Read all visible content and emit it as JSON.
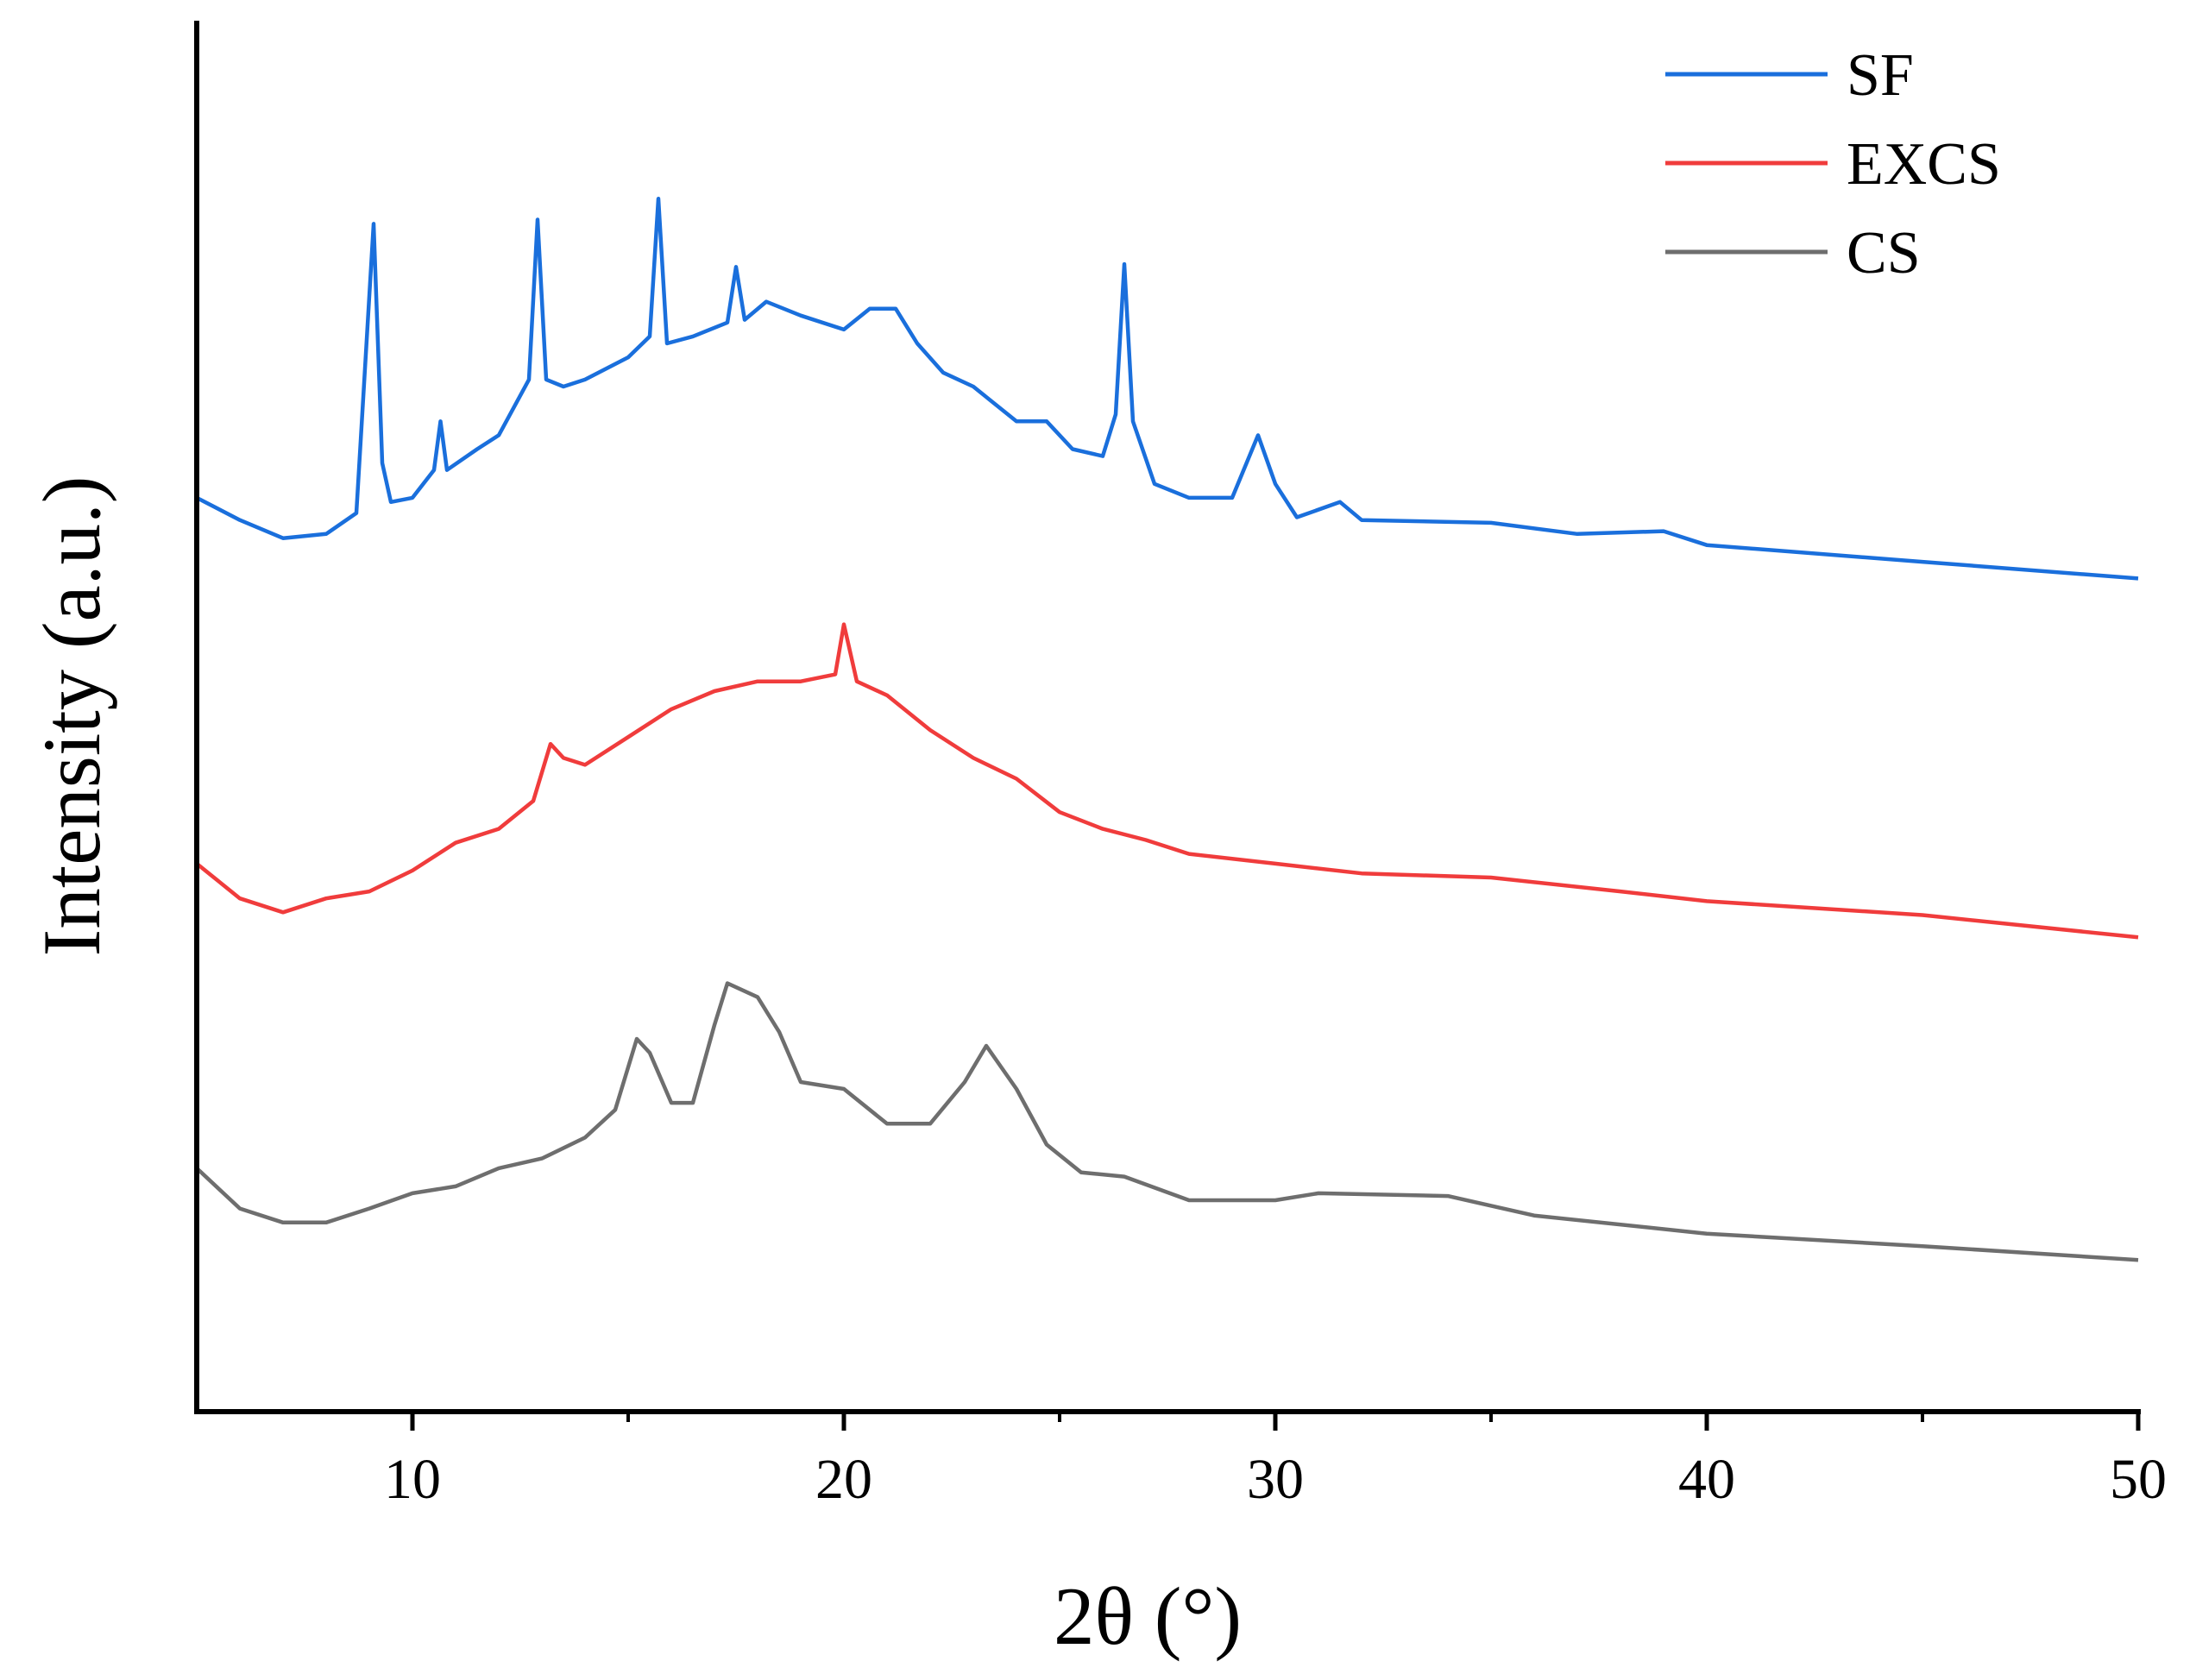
{
  "chart_data": {
    "type": "line",
    "xlabel": "2θ (°)",
    "ylabel": "Intensity (a.u.)",
    "xlim": [
      5,
      50
    ],
    "xticks": [
      10,
      20,
      30,
      40,
      50
    ],
    "xminorticks": [
      15,
      25,
      35,
      45
    ],
    "ylim": [
      0,
      100
    ],
    "legend": "upper right",
    "series": [
      {
        "name": "SF",
        "color": "#1a6fdc",
        "x": [
          5,
          6,
          7,
          8,
          8.7,
          9.1,
          9.3,
          9.5,
          10,
          10.5,
          10.65,
          10.8,
          11.5,
          12,
          12.7,
          12.9,
          13.1,
          13.5,
          14,
          15,
          15.5,
          15.7,
          15.9,
          16.5,
          17.3,
          17.5,
          17.7,
          18.2,
          19,
          20,
          20.6,
          21.2,
          21.7,
          22.3,
          23,
          24,
          24.7,
          25.3,
          26,
          26.3,
          26.5,
          26.7,
          27.2,
          28,
          29,
          29.6,
          30,
          30.5,
          31.5,
          32,
          35,
          37,
          39,
          40,
          45,
          50
        ],
        "values": [
          65.7,
          64.1,
          62.8,
          63.1,
          64.6,
          85.4,
          68.2,
          65.4,
          65.7,
          67.7,
          71.2,
          67.7,
          69.2,
          70.2,
          74.2,
          85.7,
          74.2,
          73.7,
          74.2,
          75.8,
          77.3,
          87.2,
          76.8,
          77.3,
          78.3,
          82.3,
          78.5,
          79.8,
          78.8,
          77.8,
          79.3,
          79.3,
          76.8,
          74.7,
          73.7,
          71.2,
          71.2,
          69.2,
          68.7,
          71.7,
          82.5,
          71.2,
          66.7,
          65.7,
          65.7,
          70.2,
          66.7,
          64.3,
          65.4,
          64.1,
          63.9,
          63.1,
          63.3,
          62.3,
          61.1,
          59.9
        ]
      },
      {
        "name": "EXCS",
        "color": "#f03c3c",
        "x": [
          5,
          6,
          7,
          8,
          9,
          10,
          11,
          12,
          12.8,
          13.2,
          13.5,
          14,
          15,
          16,
          17,
          18,
          19,
          19.8,
          20,
          20.3,
          21,
          22,
          23,
          24,
          25,
          26,
          27,
          28,
          30,
          32,
          35,
          38,
          40,
          45,
          50
        ],
        "values": [
          39.4,
          36.9,
          35.9,
          36.9,
          37.4,
          38.9,
          40.9,
          41.9,
          43.9,
          48.0,
          47.0,
          46.5,
          48.5,
          50.5,
          51.8,
          52.5,
          52.5,
          53.0,
          56.6,
          52.5,
          51.5,
          49.0,
          47.0,
          45.5,
          43.1,
          41.9,
          41.1,
          40.1,
          39.4,
          38.7,
          38.4,
          37.4,
          36.7,
          35.7,
          34.1
        ]
      },
      {
        "name": "CS",
        "color": "#6e6e6e",
        "x": [
          5,
          6,
          7,
          8,
          9,
          10,
          11,
          12,
          13,
          14,
          14.7,
          15.2,
          15.5,
          16,
          16.5,
          17,
          17.3,
          18,
          18.5,
          19,
          20,
          21,
          22,
          22.8,
          23.3,
          24,
          24.7,
          25.5,
          26.5,
          28,
          30,
          31,
          34,
          36,
          40,
          45,
          50
        ],
        "values": [
          17.5,
          14.6,
          13.6,
          13.6,
          14.6,
          15.7,
          16.2,
          17.5,
          18.2,
          19.7,
          21.7,
          26.8,
          25.8,
          22.2,
          22.2,
          27.8,
          30.8,
          29.8,
          27.3,
          23.7,
          23.2,
          20.7,
          20.7,
          23.7,
          26.3,
          23.2,
          19.2,
          17.2,
          16.9,
          15.2,
          15.2,
          15.7,
          15.5,
          14.1,
          12.8,
          11.9,
          10.9
        ]
      }
    ]
  }
}
